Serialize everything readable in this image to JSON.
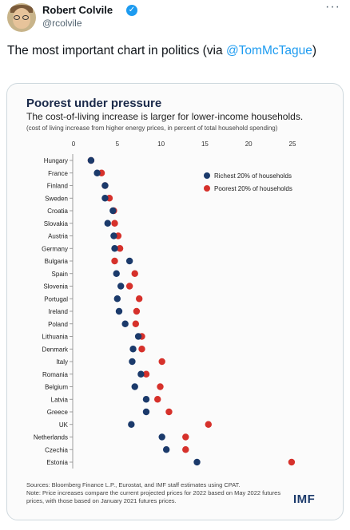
{
  "tweet": {
    "author_name": "Robert Colvile",
    "handle": "@rcolvile",
    "text_before": "The most important chart in politics (via ",
    "mention": "@TomMcTague",
    "text_after": ")",
    "more_label": "···",
    "verified_label": "✓"
  },
  "chart": {
    "sources": "Sources: Bloomberg Finance L.P., Eurostat, and IMF staff estimates using CPAT.",
    "note": "Note: Price increases compare the current projected prices for 2022 based on May 2022 futures prices, with those based on January 2021 futures prices.",
    "logo": "IMF"
  },
  "chart_data": {
    "type": "scatter",
    "title": "Poorest under pressure",
    "subtitle": "The cost-of-living increase is larger for lower-income households.",
    "note": "(cost of living increase from higher energy prices, in percent of total household spending)",
    "xlim": [
      0,
      25
    ],
    "xticks": [
      0,
      5,
      10,
      15,
      20,
      25
    ],
    "x_axis_position": "top",
    "grid": false,
    "legend_position": "top-right",
    "categories": [
      "Hungary",
      "France",
      "Finland",
      "Sweden",
      "Croatia",
      "Slovakia",
      "Austria",
      "Germany",
      "Bulgaria",
      "Spain",
      "Slovenia",
      "Portugal",
      "Ireland",
      "Poland",
      "Lithuania",
      "Denmark",
      "Italy",
      "Romania",
      "Belgium",
      "Latvia",
      "Greece",
      "UK",
      "Netherlands",
      "Czechia",
      "Estonia"
    ],
    "series": [
      {
        "name": "Richest 20% of households",
        "color": "#1b3a6b",
        "values": [
          2.0,
          2.7,
          3.6,
          3.6,
          4.5,
          3.9,
          4.6,
          4.7,
          6.4,
          4.9,
          5.4,
          5.0,
          5.2,
          5.9,
          7.4,
          6.8,
          6.7,
          7.7,
          7.0,
          8.3,
          8.3,
          6.6,
          10.1,
          10.6,
          14.1
        ]
      },
      {
        "name": "Poorest 20% of households",
        "color": "#d6312b",
        "values": [
          2.0,
          3.2,
          3.6,
          4.1,
          4.6,
          4.7,
          5.1,
          5.3,
          4.7,
          7.0,
          6.4,
          7.5,
          7.2,
          7.1,
          7.8,
          7.8,
          10.1,
          8.3,
          9.9,
          9.6,
          10.9,
          15.4,
          12.8,
          12.8,
          24.9
        ]
      }
    ]
  }
}
